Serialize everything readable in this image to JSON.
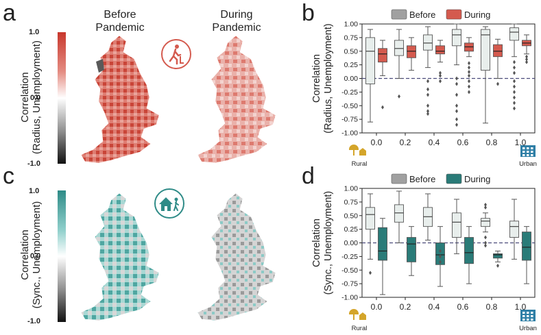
{
  "panels": {
    "a": {
      "letter": "a",
      "title_before": "Before\nPandemic",
      "title_during": "During\nPandemic",
      "colorbar": {
        "title_line1": "Correlation",
        "title_line2": "(Radius, Unemployment)",
        "ticks": [
          "1.0",
          "0.0",
          "-1.0"
        ],
        "color": "#cc4a3d"
      },
      "icon": "walking-person-icon"
    },
    "c": {
      "letter": "c",
      "colorbar": {
        "title_line1": "Correlation",
        "title_line2": "(Sync., Unemployment)",
        "ticks": [
          "1.0",
          "0.0",
          "-1.0"
        ],
        "color": "#2e8b87"
      },
      "icon": "house-person-icon"
    },
    "b": {
      "letter": "b"
    },
    "d": {
      "letter": "d"
    }
  },
  "rural_label": "Rural",
  "urban_label": "Urban",
  "colors": {
    "before_fill": "#e8eeec",
    "during_red": "#d45a4e",
    "during_teal": "#2a7b78",
    "legend_gray": "#a0a0a0",
    "dash": "#4a4a7a",
    "rural_icon": "#d4a52a",
    "urban_icon": "#2f7fa6"
  },
  "chart_data": [
    {
      "id": "b",
      "type": "box",
      "ylabel_line1": "Correlation",
      "ylabel_line2": "(Radius, Unemployment)",
      "ylim": [
        -1.0,
        1.0
      ],
      "yticks": [
        1.0,
        0.75,
        0.5,
        0.25,
        0.0,
        -0.25,
        -0.5,
        -0.75,
        -1.0
      ],
      "ytick_labels": [
        "1.00",
        "0.75",
        "0.50",
        "0.25",
        "0.00",
        "-0.25",
        "-0.50",
        "-0.75",
        "-1.00"
      ],
      "categories": [
        "0.0",
        "0.2",
        "0.4",
        "0.6",
        "0.8",
        "1.0"
      ],
      "legend": [
        "Before",
        "During"
      ],
      "reference_line": 0.0,
      "series": [
        {
          "name": "Before",
          "boxes": [
            {
              "q1": -0.1,
              "median": 0.5,
              "q3": 0.75,
              "wlo": -0.8,
              "whi": 0.9,
              "outliers": []
            },
            {
              "q1": 0.42,
              "median": 0.55,
              "q3": 0.7,
              "wlo": 0.0,
              "whi": 0.9,
              "outliers": [
                -0.33
              ]
            },
            {
              "q1": 0.52,
              "median": 0.65,
              "q3": 0.8,
              "wlo": 0.2,
              "whi": 0.95,
              "outliers": [
                -0.05,
                -0.2,
                -0.3,
                -0.5,
                -0.6,
                -0.65
              ]
            },
            {
              "q1": 0.6,
              "median": 0.8,
              "q3": 0.9,
              "wlo": 0.25,
              "whi": 1.0,
              "outliers": [
                0.0,
                -0.1,
                -0.3,
                -0.5,
                -0.6,
                -0.75,
                -0.85
              ]
            },
            {
              "q1": 0.15,
              "median": 0.8,
              "q3": 0.9,
              "wlo": -0.82,
              "whi": 0.95,
              "outliers": []
            },
            {
              "q1": 0.7,
              "median": 0.85,
              "q3": 0.93,
              "wlo": 0.4,
              "whi": 1.0,
              "outliers": [
                0.3,
                0.2,
                0.1,
                -0.05,
                -0.15,
                -0.25,
                -0.35,
                -0.45,
                -0.55
              ]
            }
          ]
        },
        {
          "name": "During",
          "boxes": [
            {
              "q1": 0.3,
              "median": 0.45,
              "q3": 0.55,
              "wlo": 0.05,
              "whi": 0.7,
              "outliers": [
                -0.53
              ]
            },
            {
              "q1": 0.38,
              "median": 0.5,
              "q3": 0.6,
              "wlo": 0.15,
              "whi": 0.75,
              "outliers": []
            },
            {
              "q1": 0.45,
              "median": 0.5,
              "q3": 0.6,
              "wlo": 0.3,
              "whi": 0.7,
              "outliers": [
                0.1,
                0.05,
                -0.05
              ]
            },
            {
              "q1": 0.5,
              "median": 0.58,
              "q3": 0.65,
              "wlo": 0.4,
              "whi": 0.75,
              "outliers": [
                0.28,
                0.2,
                0.12,
                0.05,
                -0.05,
                -0.15,
                -0.25
              ]
            },
            {
              "q1": 0.4,
              "median": 0.5,
              "q3": 0.62,
              "wlo": 0.0,
              "whi": 0.72,
              "outliers": [
                -0.1
              ]
            },
            {
              "q1": 0.6,
              "median": 0.65,
              "q3": 0.7,
              "wlo": 0.45,
              "whi": 0.8,
              "outliers": [
                0.4,
                0.35,
                0.3
              ]
            }
          ]
        }
      ]
    },
    {
      "id": "d",
      "type": "box",
      "ylabel_line1": "Correlation",
      "ylabel_line2": "(Sync., Unemployment)",
      "ylim": [
        -1.0,
        1.0
      ],
      "yticks": [
        1.0,
        0.75,
        0.5,
        0.25,
        0.0,
        -0.25,
        -0.5,
        -0.75,
        -1.0
      ],
      "ytick_labels": [
        "1.00",
        "0.75",
        "0.50",
        "0.25",
        "0.00",
        "-0.25",
        "-0.50",
        "-0.75",
        "-1.00"
      ],
      "categories": [
        "0.0",
        "0.2",
        "0.4",
        "0.6",
        "0.8",
        "1.0"
      ],
      "legend": [
        "Before",
        "During"
      ],
      "reference_line": 0.0,
      "series": [
        {
          "name": "Before",
          "boxes": [
            {
              "q1": 0.25,
              "median": 0.52,
              "q3": 0.65,
              "wlo": -0.3,
              "whi": 0.9,
              "outliers": [
                -0.55
              ]
            },
            {
              "q1": 0.38,
              "median": 0.55,
              "q3": 0.7,
              "wlo": 0.0,
              "whi": 0.95,
              "outliers": []
            },
            {
              "q1": 0.3,
              "median": 0.48,
              "q3": 0.65,
              "wlo": 0.05,
              "whi": 0.9,
              "outliers": []
            },
            {
              "q1": 0.1,
              "median": 0.38,
              "q3": 0.55,
              "wlo": -0.2,
              "whi": 0.8,
              "outliers": []
            },
            {
              "q1": 0.3,
              "median": 0.4,
              "q3": 0.45,
              "wlo": 0.2,
              "whi": 0.55,
              "outliers": [
                0.7,
                0.65,
                0.1,
                0.0,
                -0.05
              ]
            },
            {
              "q1": 0.1,
              "median": 0.3,
              "q3": 0.4,
              "wlo": -0.3,
              "whi": 0.8,
              "outliers": []
            }
          ]
        },
        {
          "name": "During",
          "boxes": [
            {
              "q1": -0.32,
              "median": -0.15,
              "q3": 0.28,
              "wlo": -0.95,
              "whi": 0.45,
              "outliers": []
            },
            {
              "q1": -0.35,
              "median": -0.02,
              "q3": 0.1,
              "wlo": -0.6,
              "whi": 0.3,
              "outliers": []
            },
            {
              "q1": -0.4,
              "median": -0.22,
              "q3": 0.0,
              "wlo": -0.8,
              "whi": 0.3,
              "outliers": [
                -0.15,
                -0.25,
                -0.35
              ]
            },
            {
              "q1": -0.38,
              "median": -0.18,
              "q3": 0.1,
              "wlo": -0.75,
              "whi": 0.3,
              "outliers": []
            },
            {
              "q1": -0.28,
              "median": -0.22,
              "q3": -0.2,
              "wlo": -0.35,
              "whi": -0.15,
              "outliers": [
                -0.42
              ]
            },
            {
              "q1": -0.32,
              "median": -0.08,
              "q3": 0.2,
              "wlo": -0.75,
              "whi": 0.3,
              "outliers": []
            }
          ]
        }
      ]
    }
  ]
}
